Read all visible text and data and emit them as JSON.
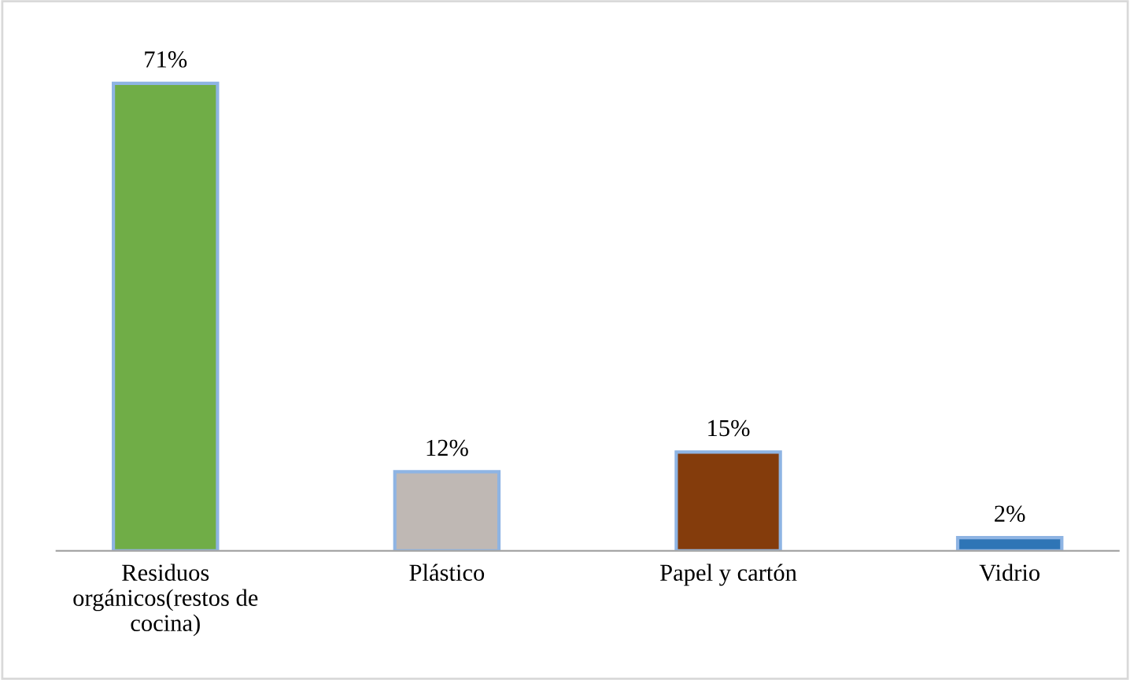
{
  "chart_data": {
    "type": "bar",
    "categories": [
      "Residuos\norgánicos(restos de\ncocina)",
      "Plástico",
      "Papel y cartón",
      "Vidrio"
    ],
    "values": [
      71,
      12,
      15,
      2
    ],
    "colors": [
      "#70ad47",
      "#bfb8b4",
      "#843c0c",
      "#2e75b6"
    ],
    "value_labels": [
      "71%",
      "12%",
      "15%",
      "2%"
    ]
  }
}
